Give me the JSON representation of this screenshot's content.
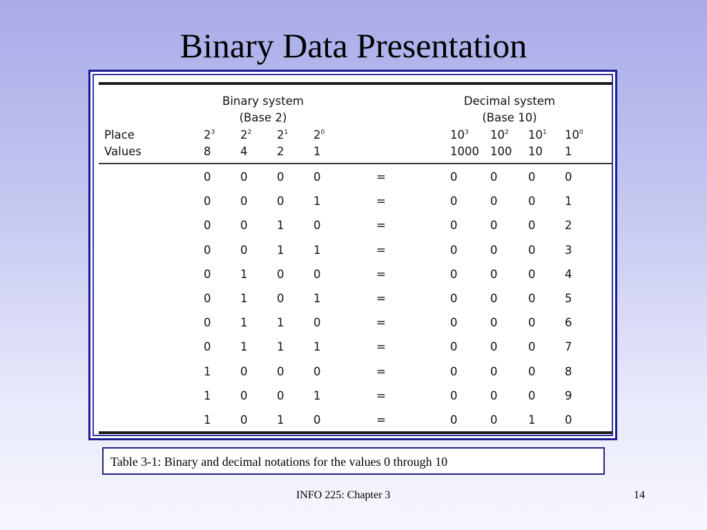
{
  "slide": {
    "title": "Binary Data Presentation",
    "caption": "Table 3-1: Binary and decimal notations for the values 0 through 10",
    "footer_center": "INFO 225: Chapter 3",
    "page_number": "14"
  },
  "table": {
    "binary_header": [
      "Binary system",
      "(Base 2)"
    ],
    "decimal_header": [
      "Decimal system",
      "(Base 10)"
    ],
    "row_labels": [
      "Place",
      "Values"
    ],
    "binary_powers": [
      {
        "base": "2",
        "exp": "3"
      },
      {
        "base": "2",
        "exp": "2"
      },
      {
        "base": "2",
        "exp": "1"
      },
      {
        "base": "2",
        "exp": "0"
      }
    ],
    "decimal_powers": [
      {
        "base": "10",
        "exp": "3"
      },
      {
        "base": "10",
        "exp": "2"
      },
      {
        "base": "10",
        "exp": "1"
      },
      {
        "base": "10",
        "exp": "0"
      }
    ],
    "binary_values": [
      "8",
      "4",
      "2",
      "1"
    ],
    "decimal_values": [
      "1000",
      "100",
      "10",
      "1"
    ],
    "equals_sign": "=",
    "rows": [
      {
        "binary": [
          "0",
          "0",
          "0",
          "0"
        ],
        "decimal": [
          "0",
          "0",
          "0",
          "0"
        ]
      },
      {
        "binary": [
          "0",
          "0",
          "0",
          "1"
        ],
        "decimal": [
          "0",
          "0",
          "0",
          "1"
        ]
      },
      {
        "binary": [
          "0",
          "0",
          "1",
          "0"
        ],
        "decimal": [
          "0",
          "0",
          "0",
          "2"
        ]
      },
      {
        "binary": [
          "0",
          "0",
          "1",
          "1"
        ],
        "decimal": [
          "0",
          "0",
          "0",
          "3"
        ]
      },
      {
        "binary": [
          "0",
          "1",
          "0",
          "0"
        ],
        "decimal": [
          "0",
          "0",
          "0",
          "4"
        ]
      },
      {
        "binary": [
          "0",
          "1",
          "0",
          "1"
        ],
        "decimal": [
          "0",
          "0",
          "0",
          "5"
        ]
      },
      {
        "binary": [
          "0",
          "1",
          "1",
          "0"
        ],
        "decimal": [
          "0",
          "0",
          "0",
          "6"
        ]
      },
      {
        "binary": [
          "0",
          "1",
          "1",
          "1"
        ],
        "decimal": [
          "0",
          "0",
          "0",
          "7"
        ]
      },
      {
        "binary": [
          "1",
          "0",
          "0",
          "0"
        ],
        "decimal": [
          "0",
          "0",
          "0",
          "8"
        ]
      },
      {
        "binary": [
          "1",
          "0",
          "0",
          "1"
        ],
        "decimal": [
          "0",
          "0",
          "0",
          "9"
        ]
      },
      {
        "binary": [
          "1",
          "0",
          "1",
          "0"
        ],
        "decimal": [
          "0",
          "0",
          "1",
          "0"
        ]
      }
    ]
  },
  "colors": {
    "frame_border": "#1c1c94",
    "background_top": "#a9abe9",
    "background_bottom": "#f6f7fd"
  }
}
